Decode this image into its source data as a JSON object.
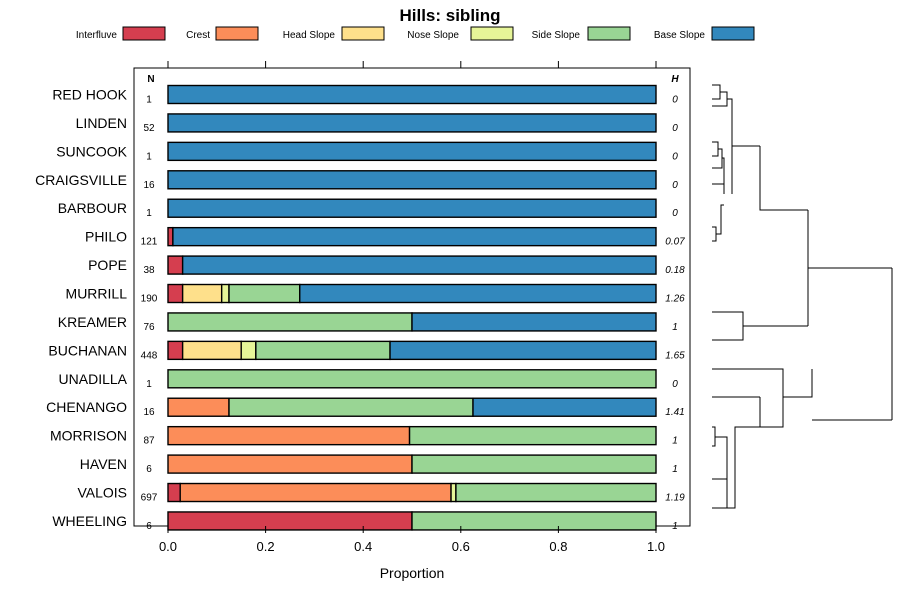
{
  "chart_data": {
    "type": "bar",
    "stacked": true,
    "orientation": "horizontal",
    "title": "Hills: sibling",
    "xlabel": "Proportion",
    "xlim": [
      0,
      1
    ],
    "xticks": [
      0.0,
      0.2,
      0.4,
      0.6,
      0.8,
      1.0
    ],
    "xtick_labels": [
      "0.0",
      "0.2",
      "0.4",
      "0.6",
      "0.8",
      "1.0"
    ],
    "n_header": "N",
    "h_header": "H",
    "legend_position": "top",
    "series": [
      {
        "name": "Interfluve",
        "color": "#d53e4f"
      },
      {
        "name": "Crest",
        "color": "#fc8d59"
      },
      {
        "name": "Head Slope",
        "color": "#fee08b"
      },
      {
        "name": "Nose Slope",
        "color": "#e6f598"
      },
      {
        "name": "Side Slope",
        "color": "#99d594"
      },
      {
        "name": "Base Slope",
        "color": "#3288bd"
      }
    ],
    "categories": [
      {
        "name": "RED HOOK",
        "n": "1",
        "h": "0",
        "values": [
          0,
          0,
          0,
          0,
          0,
          1
        ]
      },
      {
        "name": "LINDEN",
        "n": "52",
        "h": "0",
        "values": [
          0,
          0,
          0,
          0,
          0,
          1
        ]
      },
      {
        "name": "SUNCOOK",
        "n": "1",
        "h": "0",
        "values": [
          0,
          0,
          0,
          0,
          0,
          1
        ]
      },
      {
        "name": "CRAIGSVILLE",
        "n": "16",
        "h": "0",
        "values": [
          0,
          0,
          0,
          0,
          0,
          1
        ]
      },
      {
        "name": "BARBOUR",
        "n": "1",
        "h": "0",
        "values": [
          0,
          0,
          0,
          0,
          0,
          1
        ]
      },
      {
        "name": "PHILO",
        "n": "121",
        "h": "0.07",
        "values": [
          0.01,
          0,
          0,
          0,
          0,
          0.99
        ]
      },
      {
        "name": "POPE",
        "n": "38",
        "h": "0.18",
        "values": [
          0.03,
          0,
          0,
          0,
          0,
          0.97
        ]
      },
      {
        "name": "MURRILL",
        "n": "190",
        "h": "1.26",
        "values": [
          0.03,
          0,
          0.08,
          0.015,
          0.145,
          0.73
        ]
      },
      {
        "name": "KREAMER",
        "n": "76",
        "h": "1",
        "values": [
          0,
          0,
          0,
          0,
          0.5,
          0.5
        ]
      },
      {
        "name": "BUCHANAN",
        "n": "448",
        "h": "1.65",
        "values": [
          0.03,
          0,
          0.12,
          0.03,
          0.275,
          0.545
        ]
      },
      {
        "name": "UNADILLA",
        "n": "1",
        "h": "0",
        "values": [
          0,
          0,
          0,
          0,
          1,
          0
        ]
      },
      {
        "name": "CHENANGO",
        "n": "16",
        "h": "1.41",
        "values": [
          0,
          0.125,
          0,
          0,
          0.5,
          0.375
        ]
      },
      {
        "name": "MORRISON",
        "n": "87",
        "h": "1",
        "values": [
          0,
          0.495,
          0,
          0,
          0.505,
          0
        ]
      },
      {
        "name": "HAVEN",
        "n": "6",
        "h": "1",
        "values": [
          0,
          0.5,
          0,
          0,
          0.5,
          0
        ]
      },
      {
        "name": "VALOIS",
        "n": "697",
        "h": "1.19",
        "values": [
          0.025,
          0.555,
          0,
          0.01,
          0.41,
          0
        ]
      },
      {
        "name": "WHEELING",
        "n": "6",
        "h": "1",
        "values": [
          0.5,
          0,
          0,
          0,
          0.5,
          0
        ]
      }
    ],
    "dendrogram": "hierarchical clustering tree of the 16 soil series"
  }
}
